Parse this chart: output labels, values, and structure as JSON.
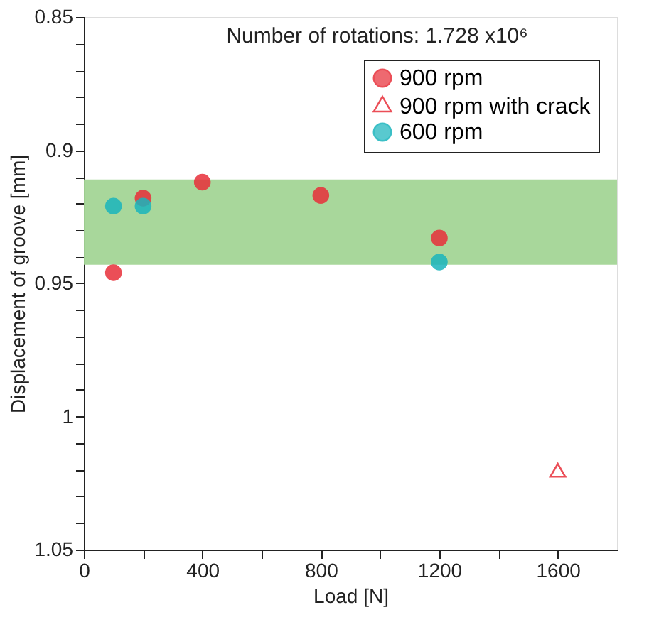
{
  "chart_data": {
    "type": "scatter",
    "xlabel": "Load [N]",
    "ylabel": "Displacement of groove [mm]",
    "annotations": [
      "Number of rotations: 1.728 x10⁶"
    ],
    "xlim": [
      0,
      1800
    ],
    "xticks": [
      0,
      {
        "value": 200,
        "label": null
      },
      400,
      {
        "value": 600,
        "label": null
      },
      800,
      {
        "value": 1000,
        "label": null
      },
      1200,
      {
        "value": 1400,
        "label": null
      },
      1600
    ],
    "ylim": [
      1.05,
      0.85
    ],
    "yticks": [
      0.85,
      {
        "value": 0.86,
        "label": null
      },
      {
        "value": 0.87,
        "label": null
      },
      {
        "value": 0.88,
        "label": null
      },
      {
        "value": 0.89,
        "label": null
      },
      0.9,
      {
        "value": 0.91,
        "label": null
      },
      {
        "value": 0.92,
        "label": null
      },
      {
        "value": 0.93,
        "label": null
      },
      {
        "value": 0.94,
        "label": null
      },
      0.95,
      {
        "value": 0.96,
        "label": null
      },
      {
        "value": 0.97,
        "label": null
      },
      {
        "value": 0.98,
        "label": null
      },
      {
        "value": 0.99,
        "label": null
      },
      {
        "value": 1,
        "label": "1"
      },
      {
        "value": 1.01,
        "label": null
      },
      {
        "value": 1.02,
        "label": null
      },
      {
        "value": 1.03,
        "label": null
      },
      {
        "value": 1.04,
        "label": null
      },
      1.05
    ],
    "grid": false,
    "legend": "top right",
    "bands": [
      {
        "axis": "y",
        "from": 0.911,
        "to": 0.943,
        "color": "#a3d596"
      }
    ],
    "series": [
      {
        "name": "900 rpm",
        "color": "#e8303a",
        "marker": "circle",
        "x": [
          100,
          200,
          400,
          800,
          1200
        ],
        "values": [
          0.946,
          0.918,
          0.912,
          0.917,
          0.933
        ]
      },
      {
        "name": "900 rpm with crack",
        "color": "#e8303a",
        "marker": "triangle",
        "x": [
          1600
        ],
        "values": [
          1.021
        ]
      },
      {
        "name": "600 rpm",
        "color": "#1ab5bd",
        "marker": "circle",
        "x": [
          100,
          200,
          1200
        ],
        "values": [
          0.921,
          0.921,
          0.942
        ]
      }
    ]
  }
}
